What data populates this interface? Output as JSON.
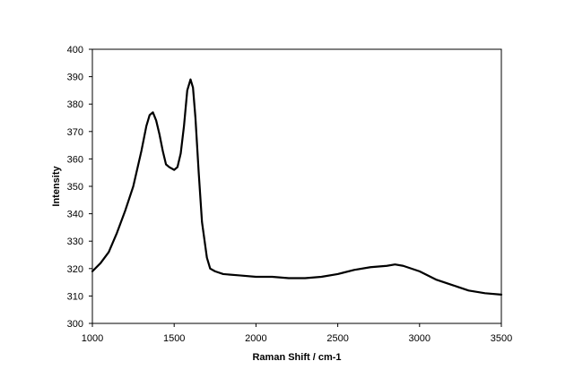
{
  "chart_data": {
    "type": "line",
    "title": "",
    "xlabel": "Raman Shift / cm-1",
    "ylabel": "Intensity",
    "xlim": [
      1000,
      3500
    ],
    "ylim": [
      300,
      400
    ],
    "xticks": [
      1000,
      1500,
      2000,
      2500,
      3000,
      3500
    ],
    "yticks": [
      300,
      310,
      320,
      330,
      340,
      350,
      360,
      370,
      380,
      390,
      400
    ],
    "grid": false,
    "legend": "none",
    "line_color": "#000000",
    "series": [
      {
        "x": [
          1000,
          1050,
          1100,
          1150,
          1200,
          1250,
          1300,
          1330,
          1350,
          1370,
          1390,
          1410,
          1430,
          1450,
          1470,
          1500,
          1520,
          1540,
          1560,
          1580,
          1600,
          1615,
          1630,
          1650,
          1670,
          1700,
          1720,
          1750,
          1800,
          1900,
          2000,
          2100,
          2200,
          2300,
          2400,
          2500,
          2600,
          2700,
          2800,
          2850,
          2900,
          3000,
          3100,
          3200,
          3300,
          3400,
          3500
        ],
        "y": [
          319,
          322,
          326,
          333,
          341,
          350,
          363,
          372,
          376,
          377,
          374,
          369,
          363,
          358,
          357,
          356,
          357,
          362,
          372,
          385,
          389,
          386,
          375,
          355,
          337,
          324,
          320,
          319,
          318,
          317.5,
          317,
          317,
          316.5,
          316.5,
          317,
          318,
          319.5,
          320.5,
          321,
          321.5,
          321,
          319,
          316,
          314,
          312,
          311,
          310.5
        ]
      }
    ]
  }
}
